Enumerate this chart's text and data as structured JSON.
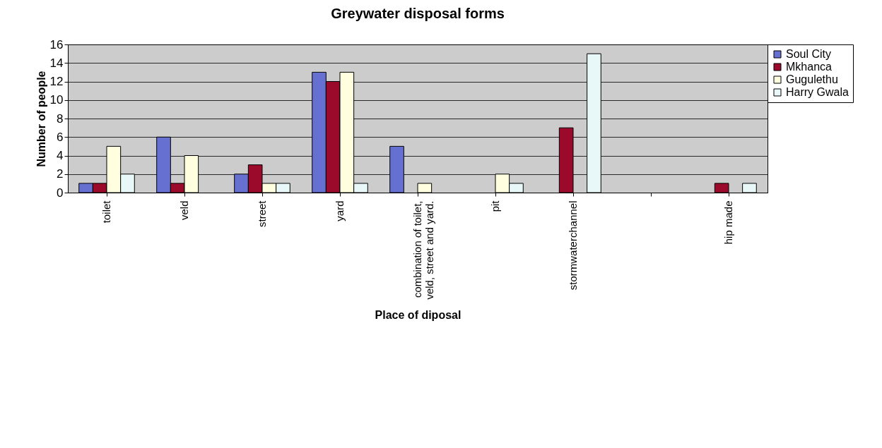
{
  "chart_data": {
    "type": "bar",
    "title": "Greywater disposal forms",
    "xlabel": "Place of diposal",
    "ylabel": "Number of people",
    "categories": [
      "toilet",
      "veld",
      "street",
      "yard",
      "combination of toilet, veld, street and yard.",
      "pit",
      "stormwaterchannel",
      null,
      "hip made"
    ],
    "series": [
      {
        "name": "Soul City",
        "color": "#6670d0",
        "values": [
          1,
          6,
          2,
          13,
          5,
          null,
          null,
          null,
          null
        ]
      },
      {
        "name": "Mkhanca",
        "color": "#9b0a2a",
        "values": [
          1,
          1,
          3,
          12,
          null,
          null,
          7,
          null,
          1
        ]
      },
      {
        "name": "Gugulethu",
        "color": "#ffffe0",
        "values": [
          5,
          4,
          1,
          13,
          1,
          2,
          null,
          null,
          null
        ]
      },
      {
        "name": "Harry Gwala",
        "color": "#e8f8f8",
        "values": [
          2,
          null,
          1,
          1,
          null,
          1,
          15,
          null,
          1
        ]
      }
    ],
    "ylim": [
      0,
      16
    ],
    "yticks": [
      0,
      2,
      4,
      6,
      8,
      10,
      12,
      14,
      16
    ],
    "grid": true,
    "legend": "right"
  }
}
